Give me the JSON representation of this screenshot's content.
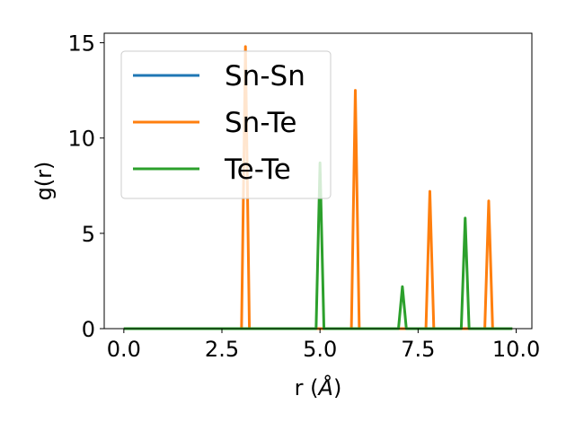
{
  "chart_data": {
    "type": "line",
    "xlabel": "r (",
    "xlabel_unit": "Å",
    "xlabel_close": ")",
    "ylabel": "g(r)",
    "xlim": [
      -0.5,
      10.4
    ],
    "ylim": [
      0,
      15.5
    ],
    "xticks": [
      0.0,
      2.5,
      5.0,
      7.5,
      10.0
    ],
    "xtick_labels": [
      "0.0",
      "2.5",
      "5.0",
      "7.5",
      "10.0"
    ],
    "yticks": [
      0,
      5,
      10,
      15
    ],
    "ytick_labels": [
      "0",
      "5",
      "10",
      "15"
    ],
    "grid": false,
    "legend_position": "top-left",
    "series": [
      {
        "name": "Sn-Sn",
        "color": "#1f77b4",
        "x": [
          0.0,
          9.9
        ],
        "y": [
          0,
          0
        ]
      },
      {
        "name": "Sn-Te",
        "color": "#ff7f0e",
        "x": [
          0.0,
          3.0,
          3.1,
          3.2,
          5.8,
          5.9,
          6.0,
          7.7,
          7.8,
          7.9,
          9.2,
          9.3,
          9.4,
          9.9
        ],
        "y": [
          0,
          0,
          14.8,
          0,
          0,
          12.5,
          0,
          0,
          7.2,
          0,
          0,
          6.7,
          0,
          0
        ]
      },
      {
        "name": "Te-Te",
        "color": "#2ca02c",
        "x": [
          0.0,
          4.9,
          5.0,
          5.1,
          7.0,
          7.1,
          7.2,
          8.6,
          8.7,
          8.8,
          9.9
        ],
        "y": [
          0,
          0,
          8.7,
          0,
          0,
          2.2,
          0,
          0,
          5.8,
          0,
          0
        ]
      }
    ]
  }
}
